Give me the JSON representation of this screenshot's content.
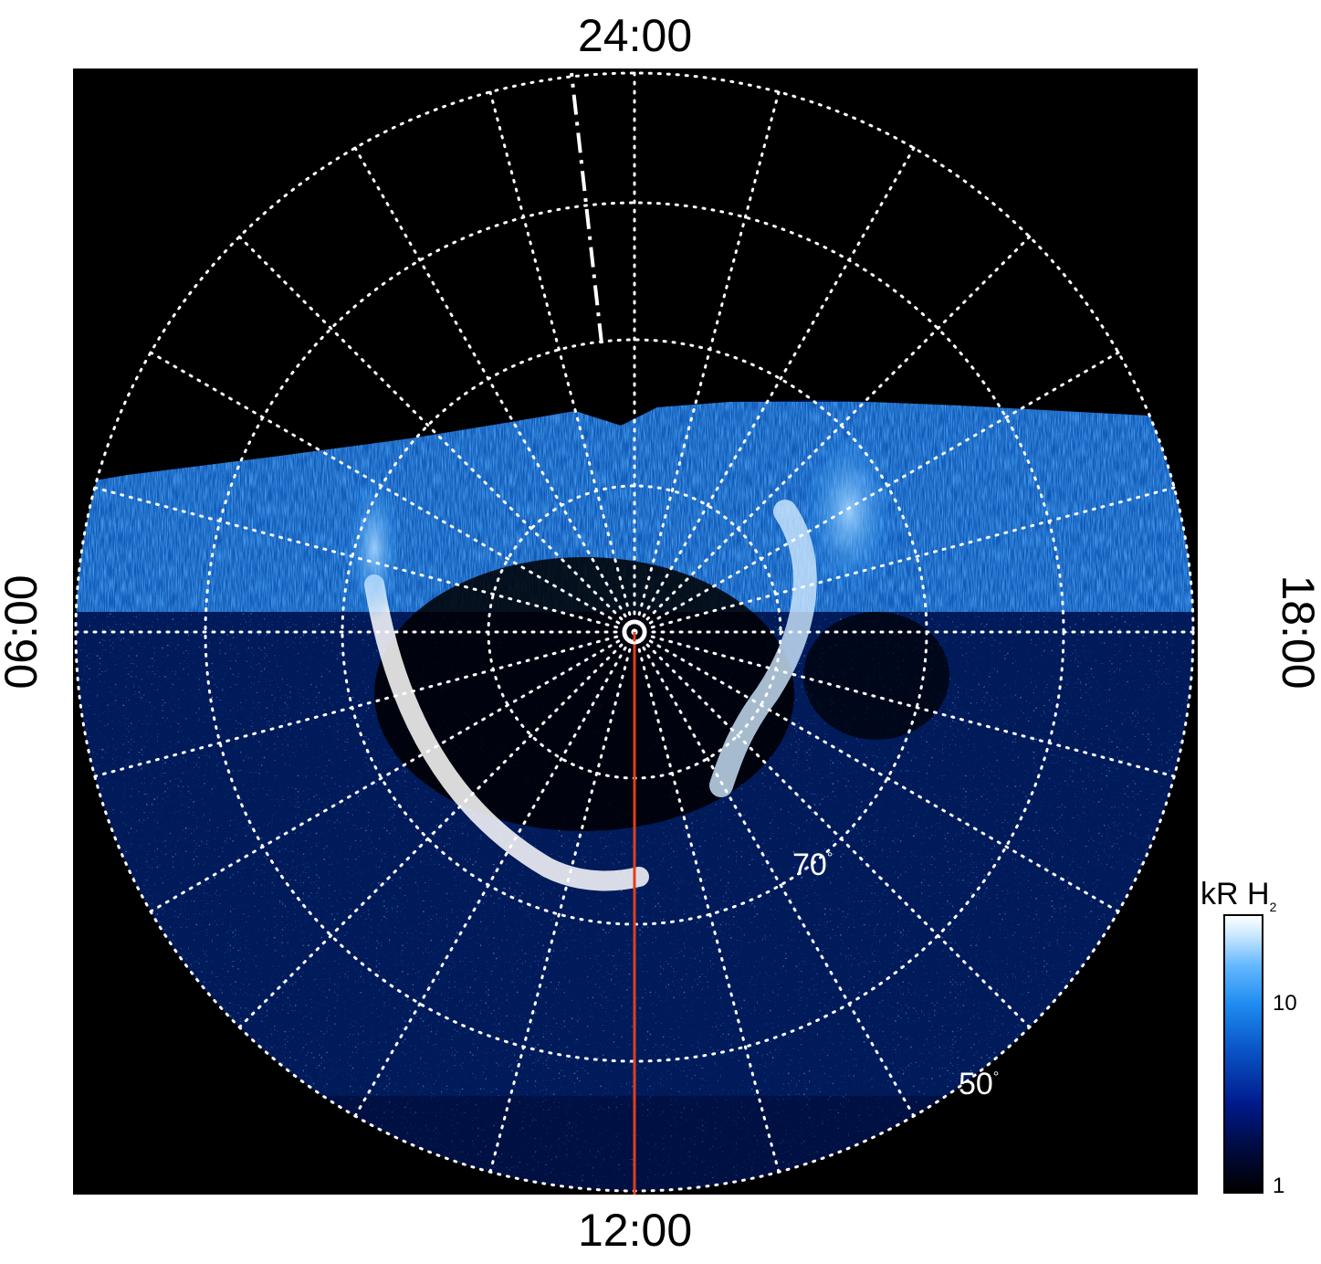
{
  "local_time_labels": {
    "top": "24:00",
    "bottom": "12:00",
    "left": "06:00",
    "right": "18:00"
  },
  "latitude_labels": {
    "inner": "70",
    "outer": "50",
    "degree_symbol": "°"
  },
  "colorbar": {
    "title_main": "kR H",
    "title_sub": "2",
    "ticks": [
      "10",
      "1"
    ]
  },
  "colors": {
    "background": "#000000",
    "grid": "#ffffff",
    "meridian_line": "#e0401a",
    "aurora_bright": "#ffffff",
    "aurora_mid": "#1e8cf0",
    "aurora_dark": "#001a8c"
  }
}
